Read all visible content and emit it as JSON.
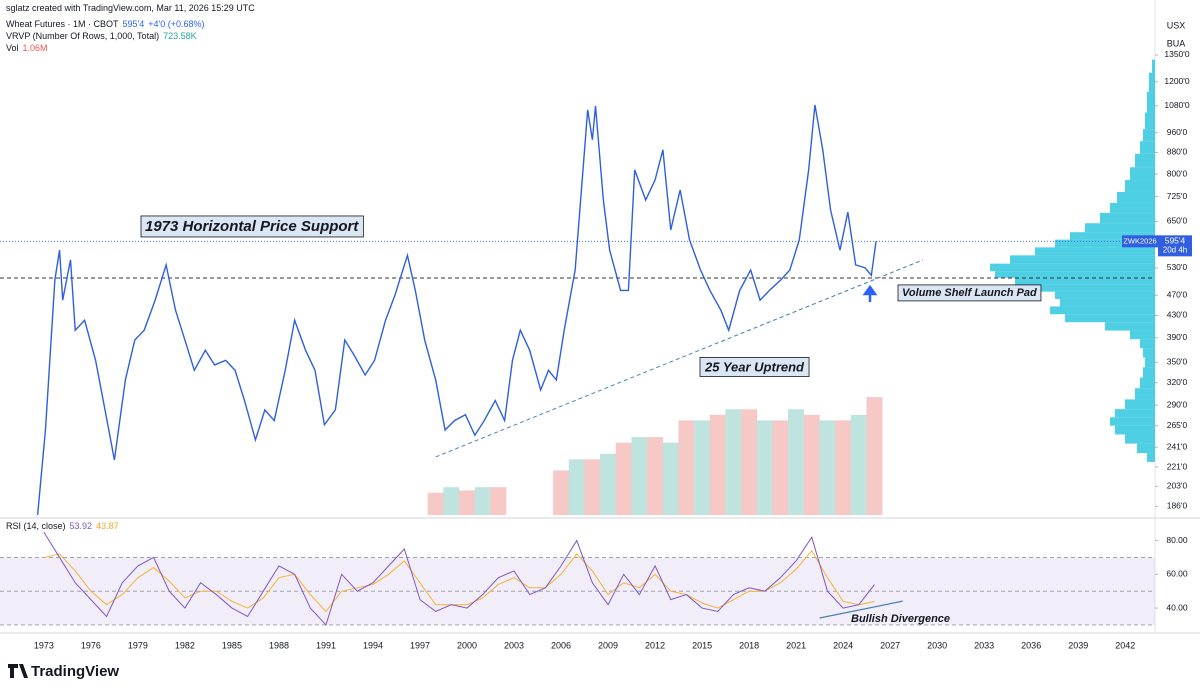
{
  "header": {
    "credit": "sglatz created with TradingView.com, Mar 11, 2026 15:29 UTC",
    "change": "+4'0 (+0.68%)",
    "currency": "USX",
    "unit": "BUA",
    "symbol_tag": "ZWK2026",
    "countdown": "20d 4h",
    "brand": "TradingView"
  },
  "chart_data": [
    {
      "type": "line",
      "log_scale": true,
      "grid": false,
      "xlim": [
        1970.2,
        2043.9
      ],
      "xticks": [
        1973,
        1976,
        1979,
        1982,
        1985,
        1988,
        1991,
        1994,
        1997,
        2000,
        2003,
        2006,
        2009,
        2012,
        2015,
        2018,
        2021,
        2024,
        2027,
        2030,
        2033,
        2036,
        2039,
        2042
      ],
      "ylim": [
        179,
        1645
      ],
      "yticks": [
        {
          "value": 186,
          "label": "186'0"
        },
        {
          "value": 203,
          "label": "203'0"
        },
        {
          "value": 221,
          "label": "221'0"
        },
        {
          "value": 241,
          "label": "241'0"
        },
        {
          "value": 265,
          "label": "265'0"
        },
        {
          "value": 290,
          "label": "290'0"
        },
        {
          "value": 320,
          "label": "320'0"
        },
        {
          "value": 350,
          "label": "350'0"
        },
        {
          "value": 390,
          "label": "390'0"
        },
        {
          "value": 430,
          "label": "430'0"
        },
        {
          "value": 470,
          "label": "470'0"
        },
        {
          "value": 530,
          "label": "530'0"
        },
        {
          "value": 650,
          "label": "650'0"
        },
        {
          "value": 725,
          "label": "725'0"
        },
        {
          "value": 800,
          "label": "800'0"
        },
        {
          "value": 880,
          "label": "880'0"
        },
        {
          "value": 960,
          "label": "960'0"
        },
        {
          "value": 1080,
          "label": "1080'0"
        },
        {
          "value": 1200,
          "label": "1200'0"
        },
        {
          "value": 1350,
          "label": "1350'0"
        }
      ],
      "x": [
        1972.6,
        1973.1,
        1973.7,
        1974.0,
        1974.2,
        1974.7,
        1975.0,
        1975.6,
        1976.3,
        1976.9,
        1977.5,
        1978.2,
        1978.8,
        1979.4,
        1980.1,
        1980.8,
        1981.4,
        1982.0,
        1982.6,
        1983.3,
        1983.9,
        1984.6,
        1985.2,
        1985.8,
        1986.5,
        1987.1,
        1987.7,
        1988.4,
        1989.0,
        1989.7,
        1990.3,
        1990.9,
        1991.6,
        1992.2,
        1992.8,
        1993.5,
        1994.1,
        1994.8,
        1995.4,
        1996.2,
        1996.7,
        1997.3,
        1998.0,
        1998.6,
        1999.2,
        1999.9,
        2000.5,
        2001.1,
        2001.8,
        2002.4,
        2002.9,
        2003.4,
        2004.0,
        2004.7,
        2005.2,
        2005.7,
        2006.2,
        2006.9,
        2007.4,
        2007.7,
        2008.0,
        2008.2,
        2008.7,
        2009.1,
        2009.8,
        2010.3,
        2010.7,
        2011.4,
        2012.0,
        2012.5,
        2013.0,
        2013.6,
        2014.2,
        2014.9,
        2015.5,
        2016.2,
        2016.7,
        2017.4,
        2018.1,
        2018.7,
        2019.3,
        2020.0,
        2020.6,
        2021.2,
        2021.8,
        2022.2,
        2022.7,
        2023.2,
        2023.8,
        2024.3,
        2024.8,
        2025.4,
        2025.8,
        2026.1
      ],
      "series": [
        {
          "name": "Wheat Futures · 1M · CBOT",
          "color": "#2f5fe0",
          "current_label": "595'4",
          "values": [
            179,
            260,
            502,
            573,
            460,
            549,
            403,
            421,
            353,
            284,
            228,
            324,
            386,
            403,
            460,
            537,
            440,
            386,
            338,
            369,
            346,
            353,
            338,
            296,
            249,
            284,
            271,
            338,
            421,
            369,
            338,
            266,
            284,
            386,
            361,
            331,
            353,
            421,
            470,
            560,
            480,
            386,
            324,
            260,
            271,
            278,
            254,
            271,
            296,
            271,
            353,
            403,
            369,
            310,
            338,
            324,
            403,
            525,
            815,
            1061,
            930,
            1079,
            714,
            573,
            480,
            480,
            815,
            714,
            780,
            890,
            626,
            746,
            599,
            525,
            480,
            440,
            403,
            480,
            525,
            460,
            480,
            502,
            525,
            599,
            815,
            1084,
            890,
            683,
            573,
            677,
            537,
            530,
            513,
            595.5
          ]
        }
      ],
      "support_level": 507,
      "trendline": {
        "x": [
          1998.0,
          2029.1
        ],
        "y": [
          231,
          549
        ],
        "color": "#4a7fb5"
      },
      "annotations": [
        {
          "text": "1973 Horizontal Price Support"
        },
        {
          "text": "Volume Shelf Launch Pad"
        },
        {
          "text": "25 Year Uptrend"
        }
      ],
      "volume": {
        "name": "Vol",
        "current_label": "1.06M",
        "colors": [
          "#f6c9c7",
          "#bfe3df"
        ],
        "x": [
          1998,
          1999,
          2000,
          2001,
          2002,
          2003,
          2004,
          2005,
          2006,
          2007,
          2008,
          2009,
          2010,
          2011,
          2012,
          2013,
          2014,
          2015,
          2016,
          2017,
          2018,
          2019,
          2020,
          2021,
          2022,
          2023,
          2024,
          2025,
          2026
        ],
        "values": [
          0.2,
          0.25,
          0.22,
          0.25,
          0.25,
          null,
          null,
          null,
          0.4,
          0.5,
          0.5,
          0.55,
          0.65,
          0.7,
          0.7,
          0.65,
          0.85,
          0.85,
          0.9,
          0.95,
          0.95,
          0.85,
          0.85,
          0.95,
          0.9,
          0.85,
          0.85,
          0.9,
          1.06
        ]
      },
      "volume_profile": {
        "name": "VRVP (Number Of Rows, 1,000, Total)",
        "total_label": "723.58K",
        "color": "#22c3dd",
        "prices": [
          1300,
          1200,
          1100,
          1000,
          950,
          900,
          850,
          800,
          760,
          720,
          690,
          660,
          630,
          610,
          590,
          570,
          550,
          530,
          515,
          500,
          485,
          470,
          455,
          440,
          425,
          410,
          395,
          380,
          365,
          350,
          335,
          320,
          305,
          290,
          280,
          270,
          260,
          250,
          240,
          230
        ],
        "values": [
          3,
          6,
          8,
          10,
          12,
          15,
          20,
          25,
          30,
          38,
          45,
          55,
          70,
          85,
          100,
          120,
          145,
          165,
          160,
          140,
          115,
          100,
          95,
          105,
          90,
          50,
          25,
          15,
          12,
          10,
          12,
          15,
          20,
          30,
          40,
          45,
          40,
          30,
          18,
          8
        ]
      }
    },
    {
      "type": "line",
      "ylim": [
        27,
        91
      ],
      "yticks": [
        {
          "value": 40,
          "label": "40.00"
        },
        {
          "value": 60,
          "label": "60.00"
        },
        {
          "value": 80,
          "label": "80.00"
        }
      ],
      "levels": [
        30,
        50,
        70
      ],
      "band_color": "#7e57c2",
      "x": [
        1973,
        1974,
        1975,
        1976,
        1977,
        1978,
        1979,
        1980,
        1981,
        1982,
        1983,
        1984,
        1985,
        1986,
        1987,
        1988,
        1989,
        1990,
        1991,
        1992,
        1993,
        1994,
        1995,
        1996,
        1997,
        1998,
        1999,
        2000,
        2001,
        2002,
        2003,
        2004,
        2005,
        2006,
        2007,
        2008,
        2009,
        2010,
        2011,
        2012,
        2013,
        2014,
        2015,
        2016,
        2017,
        2018,
        2019,
        2020,
        2021,
        2022,
        2023,
        2024,
        2025,
        2026
      ],
      "series": [
        {
          "name": "RSI (14, close)",
          "color": "#7e57c2",
          "current_label": "53.92",
          "values": [
            85,
            70,
            55,
            45,
            35,
            55,
            65,
            70,
            50,
            40,
            55,
            48,
            40,
            35,
            50,
            65,
            60,
            40,
            30,
            60,
            50,
            55,
            65,
            75,
            45,
            38,
            42,
            40,
            48,
            58,
            62,
            48,
            52,
            65,
            80,
            55,
            42,
            60,
            48,
            65,
            45,
            48,
            40,
            38,
            48,
            52,
            50,
            58,
            68,
            82,
            50,
            40,
            42,
            53.92
          ]
        },
        {
          "color": "#f5b335",
          "current_label": "43.87",
          "values": [
            70,
            72,
            62,
            50,
            42,
            48,
            58,
            64,
            56,
            46,
            50,
            50,
            44,
            40,
            46,
            58,
            60,
            48,
            38,
            50,
            52,
            54,
            60,
            68,
            55,
            42,
            42,
            42,
            46,
            54,
            58,
            52,
            52,
            60,
            72,
            62,
            48,
            55,
            52,
            60,
            50,
            48,
            43,
            40,
            45,
            50,
            50,
            55,
            63,
            74,
            58,
            44,
            42,
            43.87
          ]
        }
      ],
      "trendline": {
        "x": [
          2022.5,
          2027.8
        ],
        "y": [
          34.1,
          44.1
        ],
        "color": "#4a7fb5"
      },
      "annotations": [
        {
          "text": "Bullish Divergence"
        }
      ]
    }
  ]
}
